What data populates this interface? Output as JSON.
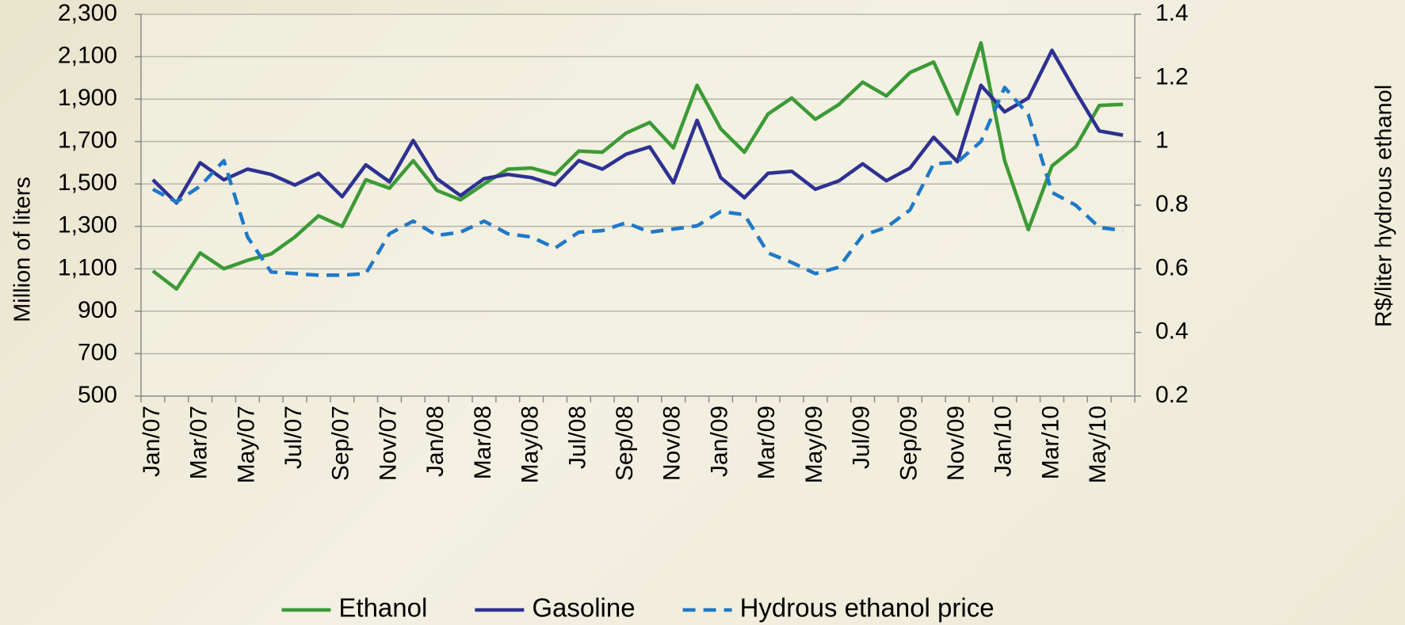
{
  "chart_data": {
    "type": "line",
    "y_label": "Million of liters",
    "y2_label": "R$/liter hydrous ethanol",
    "categories": [
      "Jan/07",
      null,
      "Mar/07",
      null,
      "May/07",
      null,
      "Jul/07",
      null,
      "Sep/07",
      null,
      "Nov/07",
      null,
      "Jan/08",
      null,
      "Mar/08",
      null,
      "May/08",
      null,
      "Jul/08",
      null,
      "Sep/08",
      null,
      "Nov/08",
      null,
      "Jan/09",
      null,
      "Mar/09",
      null,
      "May/09",
      null,
      "Jul/09",
      null,
      "Sep/09",
      null,
      "Nov/09",
      null,
      "Jan/10",
      null,
      "Mar/10",
      null,
      "May/10",
      null
    ],
    "series": [
      {
        "name": "Ethanol",
        "color": "#3c9a36",
        "style": "solid",
        "axis": "y",
        "values": [
          1090,
          1005,
          1175,
          1100,
          1140,
          1170,
          1250,
          1350,
          1300,
          1520,
          1480,
          1610,
          1470,
          1425,
          1500,
          1570,
          1575,
          1545,
          1655,
          1650,
          1740,
          1790,
          1670,
          1965,
          1760,
          1650,
          1830,
          1905,
          1805,
          1875,
          1980,
          1915,
          2025,
          2075,
          1830,
          2165,
          1610,
          1285,
          1585,
          1675,
          1870,
          1875
        ]
      },
      {
        "name": "Gasoline",
        "color": "#2e3192",
        "style": "solid",
        "axis": "y",
        "values": [
          1520,
          1410,
          1600,
          1520,
          1570,
          1545,
          1495,
          1550,
          1440,
          1590,
          1510,
          1705,
          1525,
          1445,
          1525,
          1545,
          1530,
          1495,
          1610,
          1570,
          1640,
          1675,
          1505,
          1800,
          1530,
          1435,
          1550,
          1560,
          1475,
          1515,
          1595,
          1515,
          1575,
          1720,
          1605,
          1965,
          1840,
          1905,
          2130,
          1935,
          1750,
          1730
        ]
      },
      {
        "name": "Hydrous ethanol price",
        "color": "#1f78c8",
        "style": "dashed",
        "axis": "y2",
        "values": [
          0.85,
          0.81,
          0.86,
          0.94,
          0.7,
          0.59,
          0.585,
          0.58,
          0.58,
          0.585,
          0.71,
          0.75,
          0.705,
          0.715,
          0.75,
          0.71,
          0.7,
          0.665,
          0.715,
          0.72,
          0.745,
          0.715,
          0.725,
          0.735,
          0.78,
          0.77,
          0.65,
          0.62,
          0.585,
          0.605,
          0.705,
          0.73,
          0.785,
          0.93,
          0.935,
          1.0,
          1.17,
          1.085,
          0.84,
          0.8,
          0.73,
          0.72
        ]
      }
    ],
    "ylim": [
      500,
      2300
    ],
    "yticks": [
      500,
      700,
      900,
      {
        "value": 1100,
        "label": "1,100"
      },
      {
        "value": 1300,
        "label": "1,300"
      },
      {
        "value": 1500,
        "label": "1,500"
      },
      {
        "value": 1700,
        "label": "1,700"
      },
      {
        "value": 1900,
        "label": "1,900"
      },
      {
        "value": 2100,
        "label": "2,100"
      },
      {
        "value": 2300,
        "label": "2,300"
      }
    ],
    "y2lim": [
      0.2,
      1.4
    ],
    "y2ticks": [
      0.2,
      0.4,
      0.6,
      0.8,
      1,
      1.2,
      1.4
    ],
    "grid": true,
    "legend": "bottom"
  }
}
